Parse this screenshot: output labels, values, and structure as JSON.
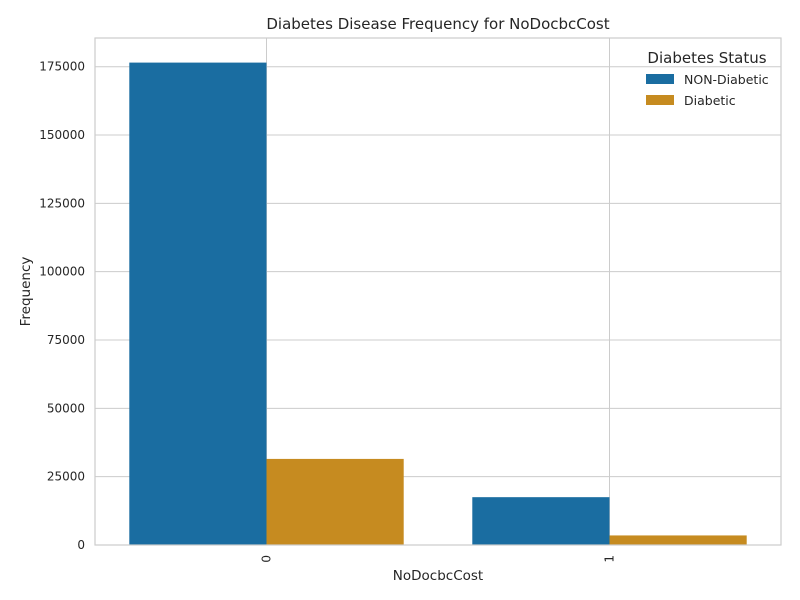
{
  "chart_data": {
    "type": "bar",
    "title": "Diabetes Disease Frequency for NoDocbcCost",
    "xlabel": "NoDocbcCost",
    "ylabel": "Frequency",
    "categories": [
      "0",
      "1"
    ],
    "series": [
      {
        "name": "NON-Diabetic",
        "values": [
          176500,
          17500
        ],
        "color": "#1a6da1"
      },
      {
        "name": "Diabetic",
        "values": [
          31500,
          3500
        ],
        "color": "#c68b20"
      }
    ],
    "yticks": [
      0,
      25000,
      50000,
      75000,
      100000,
      125000,
      150000,
      175000
    ],
    "ylim": [
      0,
      185500
    ],
    "grid": true,
    "legend": {
      "title": "Diabetes Status",
      "placement": "top-right"
    }
  }
}
